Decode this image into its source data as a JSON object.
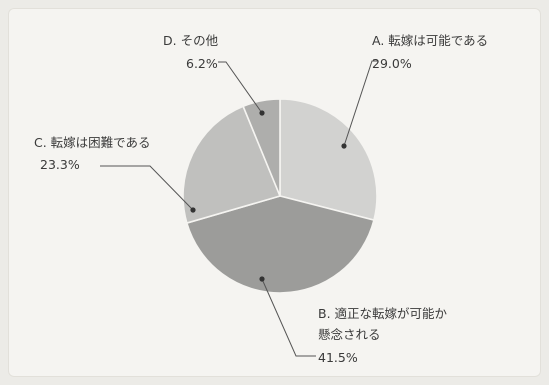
{
  "chart_data": {
    "type": "pie",
    "title": "",
    "slices": [
      {
        "letter": "A",
        "label": "A. 転嫁は可能である",
        "label_lines": [
          "A. 転嫁は可能である"
        ],
        "value": 29.0,
        "value_text": "29.0%",
        "color": "#d2d2d0"
      },
      {
        "letter": "B",
        "label": "B. 適正な転嫁が可能か懸念される",
        "label_lines": [
          "B. 適正な転嫁が可能か",
          "懸念される"
        ],
        "value": 41.5,
        "value_text": "41.5%",
        "color": "#9c9c9a"
      },
      {
        "letter": "C",
        "label": "C. 転嫁は困難である",
        "label_lines": [
          "C. 転嫁は困難である"
        ],
        "value": 23.3,
        "value_text": "23.3%",
        "color": "#c0c0be"
      },
      {
        "letter": "D",
        "label": "D. その他",
        "label_lines": [
          "D. その他"
        ],
        "value": 6.2,
        "value_text": "6.2%",
        "color": "#aeaeac"
      }
    ]
  }
}
